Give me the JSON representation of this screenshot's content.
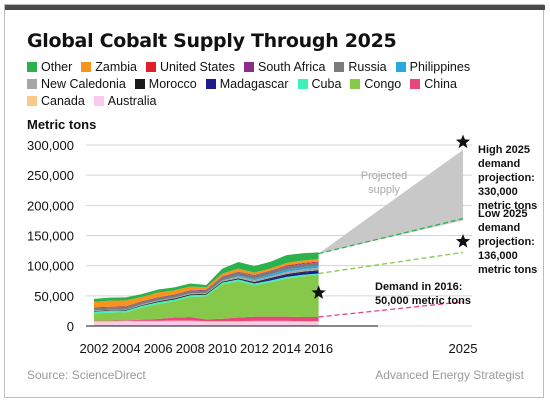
{
  "title": "Global Cobalt Supply Through 2025",
  "source": "Source: ScienceDirect",
  "brand": "Advanced Energy Strategist",
  "chart_data": {
    "type": "area",
    "ylabel": "Metric tons",
    "ylim": [
      0,
      300000
    ],
    "yticks": [
      0,
      50000,
      100000,
      150000,
      200000,
      250000,
      300000
    ],
    "ytick_labels": [
      "0",
      "50,000",
      "100,000",
      "150,000",
      "200,000",
      "250,000",
      "300,000"
    ],
    "xticks": [
      2002,
      2004,
      2006,
      2008,
      2010,
      2012,
      2014,
      2016,
      2025
    ],
    "xtick_labels": [
      "2002",
      "2004",
      "2006",
      "2008",
      "2010",
      "2012",
      "2014",
      "2016",
      "2025"
    ],
    "x": [
      2002,
      2003,
      2004,
      2005,
      2006,
      2007,
      2008,
      2009,
      2010,
      2011,
      2012,
      2013,
      2014,
      2015,
      2016
    ],
    "series": [
      {
        "name": "Australia",
        "color": "#f9c9ef",
        "values": [
          6000,
          6000,
          6500,
          6500,
          6500,
          7000,
          7000,
          6000,
          6000,
          6000,
          6500,
          6500,
          6500,
          6000,
          6000
        ]
      },
      {
        "name": "Canada",
        "color": "#f9c987",
        "values": [
          2000,
          2000,
          2000,
          2000,
          2000,
          2000,
          2000,
          2000,
          2000,
          2000,
          2000,
          2000,
          2000,
          2000,
          2000
        ]
      },
      {
        "name": "China",
        "color": "#e8467c",
        "values": [
          1000,
          1000,
          1000,
          2000,
          3000,
          5000,
          6000,
          3000,
          4000,
          6000,
          7000,
          7000,
          7000,
          7000,
          7000
        ]
      },
      {
        "name": "Congo",
        "color": "#86c94a",
        "values": [
          12000,
          13000,
          13000,
          20000,
          25000,
          27000,
          33000,
          38000,
          57000,
          60000,
          52000,
          57000,
          63000,
          67000,
          70000
        ]
      },
      {
        "name": "Cuba",
        "color": "#3ff0b9",
        "values": [
          3000,
          3000,
          3000,
          3000,
          3000,
          3000,
          3000,
          3000,
          3000,
          3000,
          3000,
          3000,
          3000,
          3000,
          2000
        ]
      },
      {
        "name": "Madagascar",
        "color": "#1e1a8c",
        "values": [
          0,
          0,
          0,
          0,
          0,
          0,
          0,
          0,
          0,
          500,
          1000,
          2500,
          3000,
          3500,
          4000
        ]
      },
      {
        "name": "Morocco",
        "color": "#1a1a1a",
        "values": [
          1000,
          1000,
          1000,
          1000,
          1500,
          1500,
          1500,
          1500,
          1500,
          1500,
          1500,
          1500,
          1500,
          1500,
          1500
        ]
      },
      {
        "name": "New Caledonia",
        "color": "#a6a6a6",
        "values": [
          1000,
          1000,
          1000,
          1500,
          1500,
          1500,
          1500,
          1500,
          2000,
          3000,
          3000,
          3000,
          4000,
          4000,
          4000
        ]
      },
      {
        "name": "Philippines",
        "color": "#29a8e0",
        "values": [
          0,
          0,
          0,
          0,
          0,
          0,
          0,
          0,
          0,
          1500,
          2000,
          3000,
          3500,
          3500,
          3500
        ]
      },
      {
        "name": "Russia",
        "color": "#7a7a7a",
        "values": [
          4000,
          4000,
          4000,
          4000,
          4000,
          4000,
          4000,
          4000,
          5500,
          5500,
          5500,
          5000,
          5000,
          5000,
          5000
        ]
      },
      {
        "name": "South Africa",
        "color": "#8e2c8c",
        "values": [
          1000,
          1000,
          1000,
          1000,
          1000,
          1000,
          1000,
          1000,
          1000,
          1000,
          1000,
          1000,
          1000,
          1000,
          1000
        ]
      },
      {
        "name": "United States",
        "color": "#e21f26",
        "values": [
          0,
          0,
          0,
          0,
          0,
          0,
          0,
          0,
          0,
          0,
          0,
          0,
          1000,
          1000,
          1000
        ]
      },
      {
        "name": "Zambia",
        "color": "#f7941e",
        "values": [
          9000,
          10000,
          10000,
          7000,
          8000,
          7000,
          6500,
          4000,
          5000,
          5000,
          4000,
          4000,
          4000,
          4000,
          4000
        ]
      },
      {
        "name": "Other",
        "color": "#2bb24c",
        "values": [
          5000,
          5000,
          5000,
          5000,
          5000,
          5000,
          5000,
          4000,
          8000,
          11000,
          11000,
          11000,
          13000,
          12000,
          11000
        ]
      }
    ],
    "legend_order": [
      "Other",
      "Zambia",
      "United States",
      "South Africa",
      "Russia",
      "Philippines",
      "New Caledonia",
      "Morocco",
      "Madagascar",
      "Cuba",
      "Congo",
      "China",
      "Canada",
      "Australia"
    ],
    "projected_supply": {
      "label": "Projected supply",
      "start": {
        "x": 2016,
        "y": 120000
      },
      "end_low": {
        "x": 2025,
        "y": 175000
      },
      "end_high": {
        "x": 2025,
        "y": 292000
      }
    },
    "demand_lines": [
      {
        "name": "high",
        "color": "#2bb24c",
        "start": {
          "x": 2016,
          "y": 120000
        },
        "end": {
          "x": 2025,
          "y": 178000
        }
      },
      {
        "name": "low",
        "color": "#86c94a",
        "start": {
          "x": 2016,
          "y": 87000
        },
        "end": {
          "x": 2025,
          "y": 122000
        }
      },
      {
        "name": "2016",
        "color": "#e8467c",
        "start": {
          "x": 2016,
          "y": 15000
        },
        "end": {
          "x": 2025,
          "y": 40000
        }
      }
    ],
    "annotations": [
      {
        "lines": [
          "High 2025",
          "demand",
          "projection:",
          "330,000",
          "metric tons"
        ],
        "star": {
          "x": 2025,
          "y": 305000
        }
      },
      {
        "lines": [
          "Low 2025",
          "demand",
          "projection:",
          "136,000",
          "metric tons"
        ],
        "star": {
          "x": 2025,
          "y": 140000
        }
      },
      {
        "lines": [
          "Demand in 2016:",
          "50,000 metric tons"
        ],
        "star": {
          "x": 2016,
          "y": 55000
        }
      }
    ]
  }
}
